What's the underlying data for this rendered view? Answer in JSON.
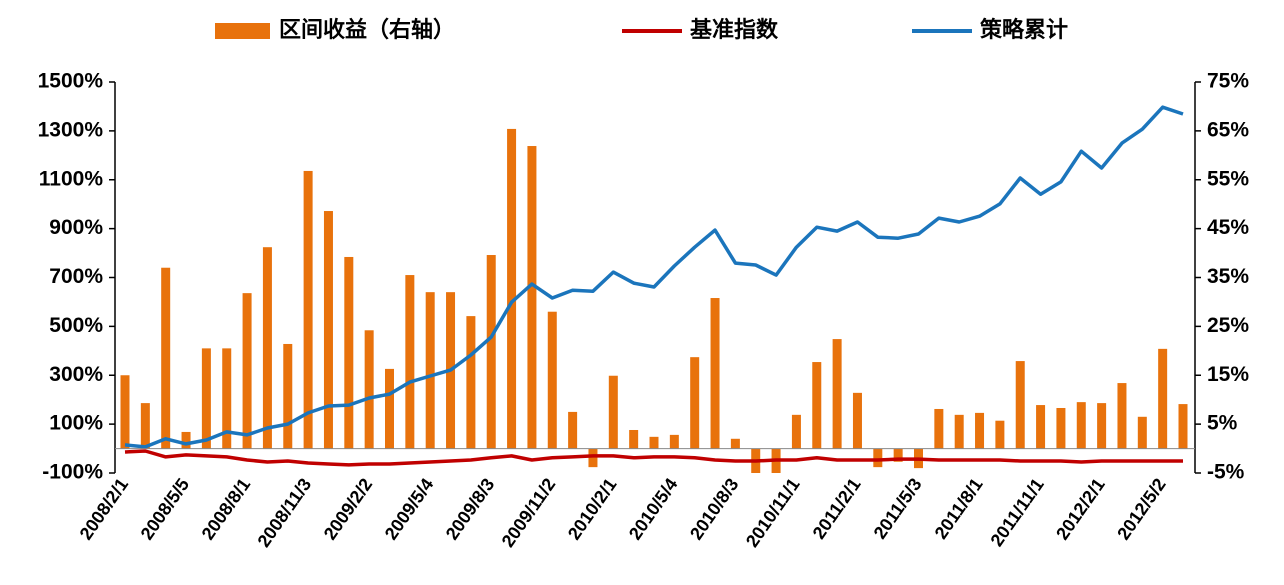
{
  "chart_data": {
    "type": "bar",
    "categories": [
      "2008/2/1",
      null,
      null,
      "2008/5/5",
      null,
      null,
      "2008/8/1",
      null,
      null,
      "2008/11/3",
      null,
      null,
      "2009/2/2",
      null,
      null,
      "2009/5/4",
      null,
      null,
      "2009/8/3",
      null,
      null,
      "2009/11/2",
      null,
      null,
      "2010/2/1",
      null,
      null,
      "2010/5/4",
      null,
      null,
      "2010/8/3",
      null,
      null,
      "2010/11/1",
      null,
      null,
      "2011/2/1",
      null,
      null,
      "2011/5/3",
      null,
      null,
      "2011/8/1",
      null,
      null,
      "2011/11/1",
      null,
      null,
      "2012/2/1",
      null,
      null,
      "2012/5/2",
      null
    ],
    "series": [
      {
        "name": "区间收益（右轴）",
        "type": "bar",
        "axis": "y2",
        "color": "#e8720c",
        "values": [
          15,
          9.3,
          37,
          3.4,
          20.5,
          20.5,
          31.8,
          41.2,
          21.4,
          56.8,
          48.6,
          39.2,
          24.2,
          16.3,
          35.5,
          32,
          32,
          27.1,
          39.6,
          65.4,
          61.9,
          28,
          7.5,
          -3.8,
          14.9,
          3.8,
          2.4,
          2.8,
          18.7,
          30.8,
          2,
          -5,
          -5,
          6.9,
          17.7,
          22.4,
          11.4,
          -3.8,
          -2.7,
          -4,
          8.1,
          6.9,
          7.3,
          5.7,
          17.9,
          8.9,
          8.3,
          9.5,
          9.3,
          13.4,
          6.5,
          20.4,
          9.1
        ]
      },
      {
        "name": "基准指数",
        "type": "line",
        "axis": "y",
        "color": "#c00000",
        "values": [
          -14,
          -10,
          -34,
          -26,
          -30,
          -34,
          -47,
          -55,
          -51,
          -59,
          -63,
          -67,
          -63,
          -63,
          -59,
          -55,
          -51,
          -47,
          -38,
          -30,
          -47,
          -38,
          -34,
          -30,
          -30,
          -38,
          -34,
          -34,
          -38,
          -47,
          -51,
          -51,
          -47,
          -47,
          -38,
          -47,
          -47,
          -47,
          -43,
          -43,
          -47,
          -47,
          -47,
          -47,
          -51,
          -51,
          -51,
          -55,
          -51,
          -51,
          -51,
          -51,
          -51
        ]
      },
      {
        "name": "策略累计",
        "type": "line",
        "axis": "y",
        "color": "#1b75bc",
        "values": [
          15,
          7,
          40,
          19,
          35,
          68,
          56,
          84,
          100,
          146,
          174,
          178,
          207,
          223,
          272,
          297,
          321,
          383,
          456,
          599,
          673,
          616,
          648,
          644,
          722,
          677,
          661,
          747,
          824,
          894,
          759,
          751,
          710,
          824,
          906,
          890,
          927,
          865,
          861,
          878,
          943,
          927,
          951,
          1001,
          1107,
          1041,
          1091,
          1217,
          1148,
          1250,
          1307,
          1397,
          1369
        ]
      }
    ],
    "ylim": [
      -100,
      1500
    ],
    "yticks": [
      {
        "value": -100,
        "label": "-100%"
      },
      {
        "value": 100,
        "label": "100%"
      },
      {
        "value": 300,
        "label": "300%"
      },
      {
        "value": 500,
        "label": "500%"
      },
      {
        "value": 700,
        "label": "700%"
      },
      {
        "value": 900,
        "label": "900%"
      },
      {
        "value": 1100,
        "label": "1100%"
      },
      {
        "value": 1300,
        "label": "1300%"
      },
      {
        "value": 1500,
        "label": "1500%"
      }
    ],
    "y2lim": [
      -5,
      75
    ],
    "y2ticks": [
      {
        "value": -5,
        "label": "-5%"
      },
      {
        "value": 5,
        "label": "5%"
      },
      {
        "value": 15,
        "label": "15%"
      },
      {
        "value": 25,
        "label": "25%"
      },
      {
        "value": 35,
        "label": "35%"
      },
      {
        "value": 45,
        "label": "45%"
      },
      {
        "value": 55,
        "label": "55%"
      },
      {
        "value": 65,
        "label": "65%"
      },
      {
        "value": 75,
        "label": "75%"
      }
    ],
    "legend": "top"
  }
}
